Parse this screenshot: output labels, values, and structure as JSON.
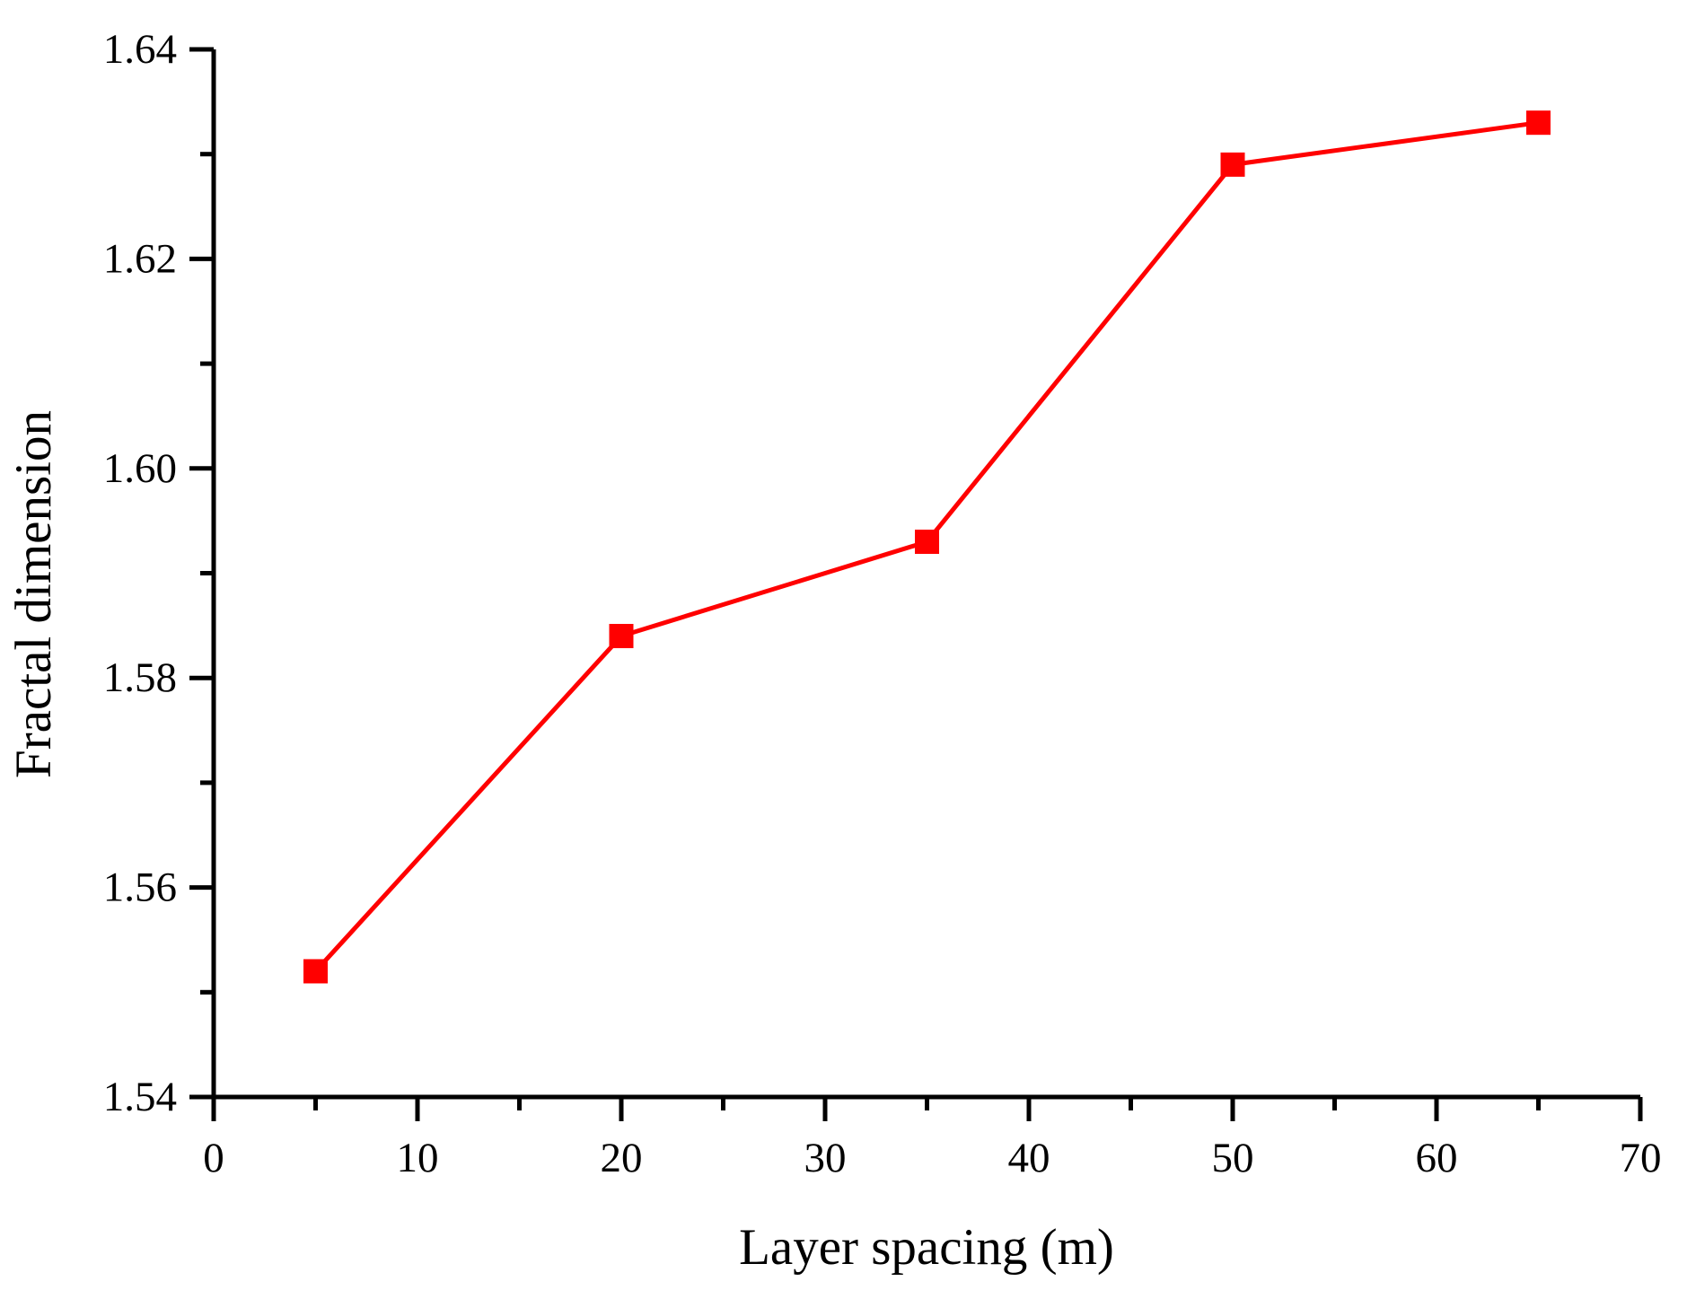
{
  "chart_data": {
    "type": "line",
    "title": "",
    "xlabel": "Layer spacing (m)",
    "ylabel": "Fractal dimension",
    "x": [
      5,
      20,
      35,
      50,
      65
    ],
    "y": [
      1.552,
      1.584,
      1.593,
      1.629,
      1.633
    ],
    "xlim": [
      0,
      70
    ],
    "ylim": [
      1.54,
      1.64
    ],
    "x_major_ticks": [
      0,
      10,
      20,
      30,
      40,
      50,
      60,
      70
    ],
    "x_tick_labels": [
      "0",
      "10",
      "20",
      "30",
      "40",
      "50",
      "60",
      "70"
    ],
    "x_minor_ticks": [
      5,
      15,
      25,
      35,
      45,
      55,
      65
    ],
    "y_major_ticks": [
      1.54,
      1.56,
      1.58,
      1.6,
      1.62,
      1.64
    ],
    "y_tick_labels": [
      "1.54",
      "1.56",
      "1.58",
      "1.60",
      "1.62",
      "1.64"
    ],
    "y_minor_ticks": [
      1.55,
      1.57,
      1.59,
      1.61,
      1.63
    ],
    "grid": false,
    "legend": null,
    "line_color": "#FF0000",
    "marker": "square",
    "marker_color": "#FF0000",
    "marker_size": 27,
    "axis_color": "#000000",
    "background_color": "#FFFFFF"
  }
}
